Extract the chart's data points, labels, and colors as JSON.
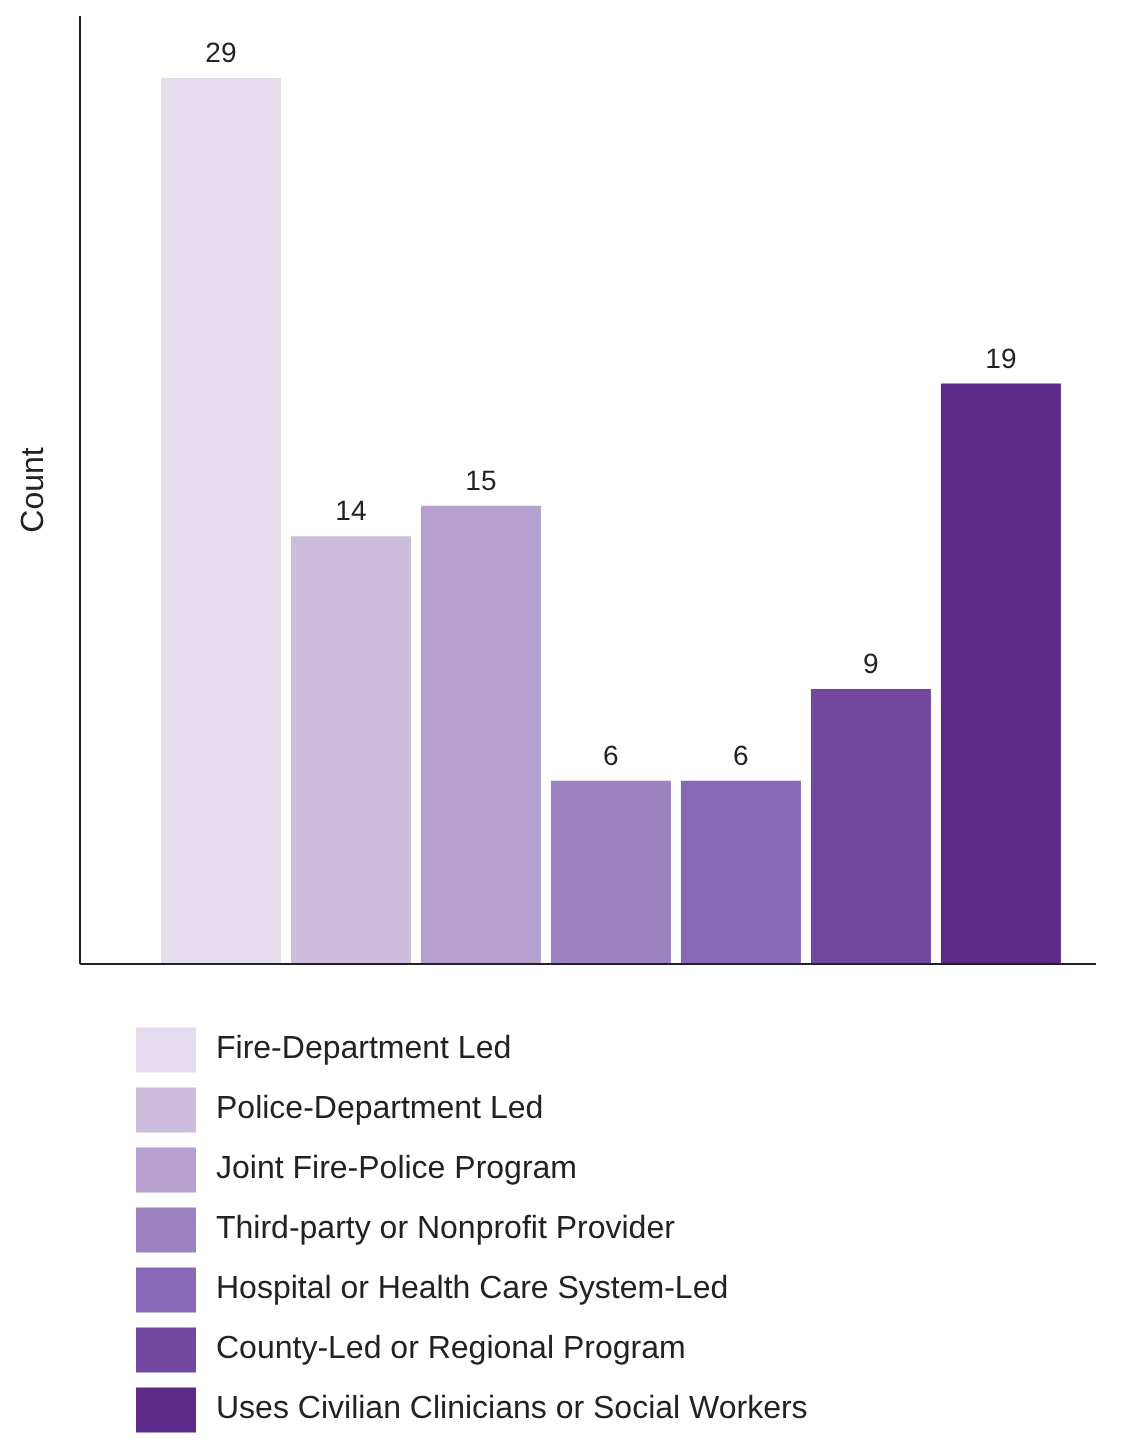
{
  "chart_data": {
    "type": "bar",
    "ylabel": "Count",
    "categories": [
      null
    ],
    "data_labels": true,
    "legend": "bottom",
    "grid": false,
    "series": [
      {
        "name": "Fire-Department Led",
        "color": "#e5dcee",
        "values": [
          29
        ]
      },
      {
        "name": "Police-Department Led",
        "color": "#ccbddd",
        "values": [
          14
        ]
      },
      {
        "name": "Joint Fire-Police Program",
        "color": "#b5a0cf",
        "values": [
          15
        ]
      },
      {
        "name": "Third-party or Nonprofit Provider",
        "color": "#9c82c1",
        "values": [
          6
        ]
      },
      {
        "name": "Hospital or Health Care System-Led",
        "color": "#8867b6",
        "values": [
          6
        ]
      },
      {
        "name": "County-Led or Regional Program",
        "color": "#71489d",
        "values": [
          9
        ]
      },
      {
        "name": "Uses Civilian Clinicians or Social Workers",
        "color": "#5b2a8b",
        "values": [
          19
        ]
      }
    ]
  }
}
